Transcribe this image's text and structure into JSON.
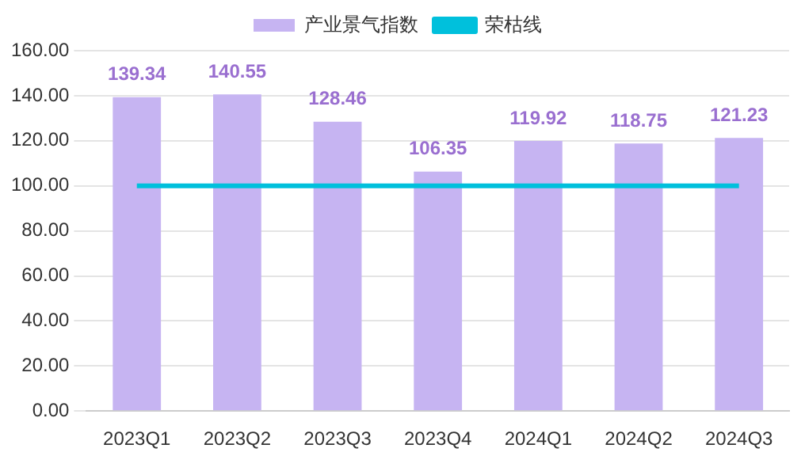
{
  "chart_data": {
    "type": "bar",
    "categories": [
      "2023Q1",
      "2023Q2",
      "2023Q3",
      "2023Q4",
      "2024Q1",
      "2024Q2",
      "2024Q3"
    ],
    "series": [
      {
        "name": "产业景气指数",
        "color": "#c6b4f2",
        "values": [
          139.34,
          140.55,
          128.46,
          106.35,
          119.92,
          118.75,
          121.23
        ],
        "value_labels": [
          "139.34",
          "140.55",
          "128.46",
          "106.35",
          "119.92",
          "118.75",
          "121.23"
        ]
      },
      {
        "name": "荣枯线",
        "type": "line",
        "color": "#00c0dc",
        "values": [
          100,
          100,
          100,
          100,
          100,
          100,
          100
        ]
      }
    ],
    "ylim": [
      0,
      160
    ],
    "yticks": [
      {
        "value": 0,
        "label": "0.00"
      },
      {
        "value": 20,
        "label": "20.00"
      },
      {
        "value": 40,
        "label": "40.00"
      },
      {
        "value": 60,
        "label": "60.00"
      },
      {
        "value": 80,
        "label": "80.00"
      },
      {
        "value": 100,
        "label": "100.00"
      },
      {
        "value": 120,
        "label": "120.00"
      },
      {
        "value": 140,
        "label": "140.00"
      },
      {
        "value": 160,
        "label": "160.00"
      }
    ],
    "grid": "y",
    "legend": "top",
    "marker": "none",
    "line_style": "solid"
  }
}
